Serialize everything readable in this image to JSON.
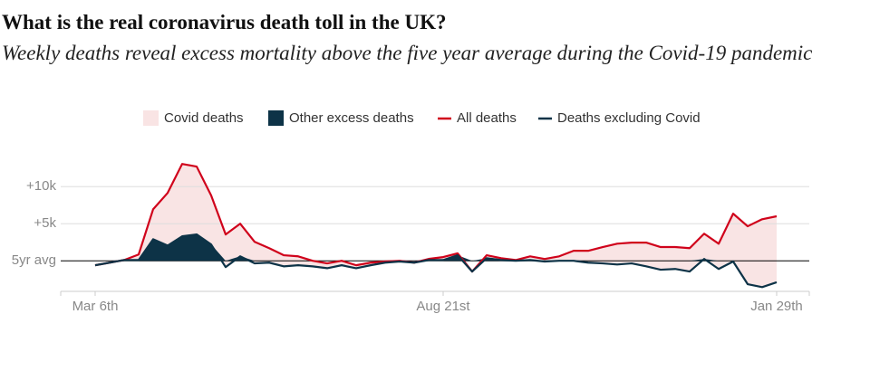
{
  "chart_data": {
    "type": "line",
    "title": "What is the real coronavirus death toll in the UK?",
    "subtitle": "Weekly deaths reveal excess mortality above the five year average during the Covid-19 pandemic",
    "categories": [
      "Mar 6th",
      null,
      null,
      null,
      null,
      null,
      null,
      null,
      null,
      null,
      null,
      null,
      null,
      null,
      null,
      null,
      null,
      null,
      null,
      null,
      null,
      null,
      null,
      null,
      "Aug 21st",
      null,
      null,
      null,
      null,
      null,
      null,
      null,
      null,
      null,
      null,
      null,
      null,
      null,
      null,
      null,
      null,
      null,
      null,
      null,
      null,
      null,
      null,
      "Jan 29th"
    ],
    "areas": [
      {
        "name": "Covid deaths",
        "color": "#f9e4e4"
      },
      {
        "name": "Other excess deaths",
        "color": "#0d3347"
      }
    ],
    "series": [
      {
        "name": "All deaths",
        "color": "#d0021b",
        "values": [
          -600,
          -250,
          100,
          850,
          6950,
          9150,
          13050,
          12700,
          8800,
          3550,
          5000,
          2550,
          1700,
          750,
          600,
          0,
          -350,
          0,
          -600,
          -250,
          -100,
          0,
          -250,
          250,
          500,
          1000,
          -1450,
          750,
          350,
          100,
          600,
          250,
          600,
          1350,
          1350,
          1850,
          2300,
          2450,
          2450,
          1850,
          1850,
          1700,
          3650,
          2300,
          6350,
          4650,
          5600,
          6000
        ]
      },
      {
        "name": "Deaths excluding Covid",
        "color": "#0d3347",
        "values": [
          -600,
          -250,
          100,
          100,
          2900,
          2050,
          3300,
          3550,
          2200,
          -850,
          600,
          -350,
          -250,
          -750,
          -600,
          -750,
          -1000,
          -600,
          -1000,
          -600,
          -250,
          -100,
          -250,
          100,
          100,
          750,
          -1450,
          350,
          100,
          0,
          100,
          -100,
          0,
          0,
          -250,
          -350,
          -500,
          -350,
          -750,
          -1200,
          -1100,
          -1450,
          250,
          -1100,
          -100,
          -3150,
          -3550,
          -2900
        ]
      }
    ],
    "ylim": [
      -4000,
      13000
    ],
    "yticks": [
      {
        "value": 0,
        "label": "5yr avg"
      },
      {
        "value": 5000,
        "label": "+5k"
      },
      {
        "value": 10000,
        "label": "+10k"
      }
    ],
    "grid": true
  }
}
